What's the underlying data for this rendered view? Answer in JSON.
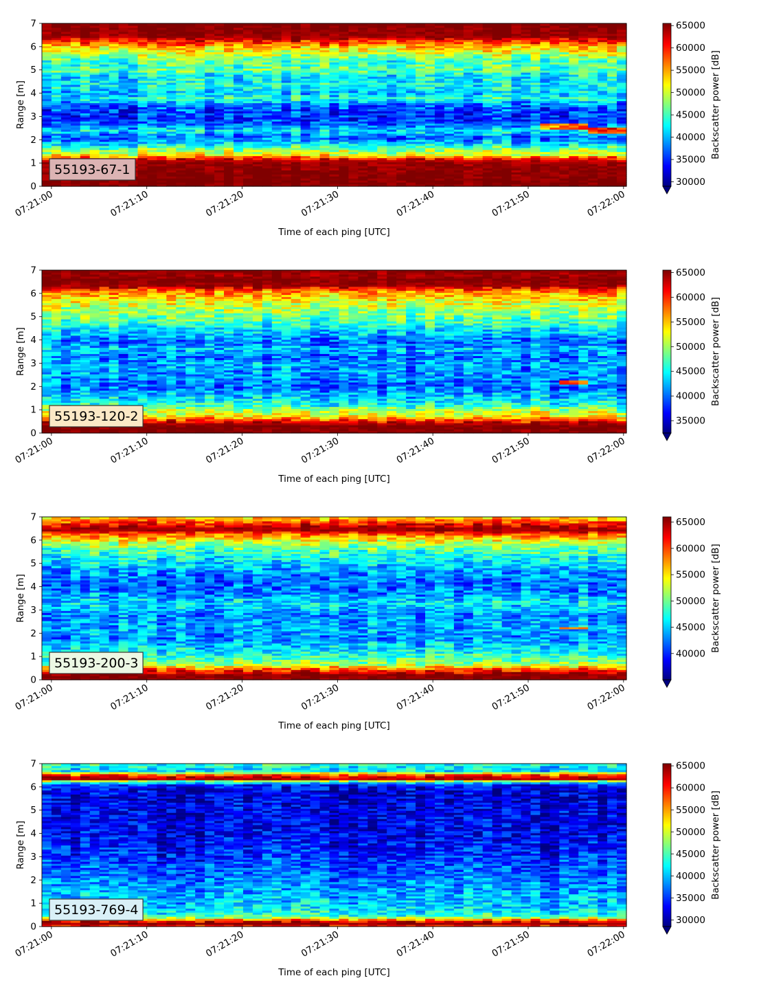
{
  "chart_data": [
    {
      "type": "heatmap",
      "label": "55193-67-1",
      "label_bg": "#dcb3b3",
      "xlabel": "Time of each ping [UTC]",
      "ylabel": "Range [m]",
      "xticks": [
        "07:21:00",
        "07:21:10",
        "07:21:20",
        "07:21:30",
        "07:21:40",
        "07:21:50",
        "07:22:00"
      ],
      "yticks": [
        "0",
        "1",
        "2",
        "3",
        "4",
        "5",
        "6",
        "7"
      ],
      "ylim": [
        0,
        7
      ],
      "xlim_seconds": [
        -1,
        60.3
      ],
      "colorbar": {
        "label": "Backscatter power [dB]",
        "range": [
          29000,
          65500
        ],
        "ticks": [
          "65000",
          "60000",
          "55000",
          "50000",
          "45000",
          "40000",
          "35000",
          "30000"
        ],
        "extend": "min"
      },
      "profile": [
        [
          0.0,
          65000
        ],
        [
          0.25,
          65500
        ],
        [
          1.05,
          64500
        ],
        [
          1.2,
          60000
        ],
        [
          1.35,
          52000
        ],
        [
          1.6,
          47000
        ],
        [
          1.85,
          41000
        ],
        [
          2.1,
          37000
        ],
        [
          2.4,
          42000
        ],
        [
          2.6,
          38000
        ],
        [
          2.9,
          35000
        ],
        [
          3.2,
          36000
        ],
        [
          3.5,
          37000
        ],
        [
          3.8,
          44000
        ],
        [
          4.0,
          40000
        ],
        [
          4.3,
          43000
        ],
        [
          4.7,
          42000
        ],
        [
          5.0,
          46000
        ],
        [
          5.4,
          45000
        ],
        [
          5.7,
          50000
        ],
        [
          6.0,
          54000
        ],
        [
          6.3,
          61000
        ],
        [
          6.45,
          64500
        ],
        [
          7.0,
          65500
        ]
      ],
      "features": [
        {
          "t0": 51,
          "t1": 56,
          "r0": 2.45,
          "r1": 2.7,
          "v": 57000
        },
        {
          "t0": 56,
          "t1": 61,
          "r0": 2.25,
          "r1": 2.5,
          "v": 59000
        }
      ]
    },
    {
      "type": "heatmap",
      "label": "55193-120-2",
      "label_bg": "#fbe9c6",
      "xlabel": "Time of each ping [UTC]",
      "ylabel": "Range [m]",
      "xticks": [
        "07:21:00",
        "07:21:10",
        "07:21:20",
        "07:21:30",
        "07:21:40",
        "07:21:50",
        "07:22:00"
      ],
      "yticks": [
        "0",
        "1",
        "2",
        "3",
        "4",
        "5",
        "6",
        "7"
      ],
      "ylim": [
        0,
        7
      ],
      "xlim_seconds": [
        -1,
        60.3
      ],
      "colorbar": {
        "label": "Backscatter power [dB]",
        "range": [
          32500,
          65500
        ],
        "ticks": [
          "65000",
          "60000",
          "55000",
          "50000",
          "45000",
          "40000",
          "35000"
        ],
        "extend": "min"
      },
      "profile": [
        [
          0.0,
          65000
        ],
        [
          0.3,
          65500
        ],
        [
          0.5,
          62000
        ],
        [
          0.7,
          54000
        ],
        [
          0.95,
          51000
        ],
        [
          1.2,
          46000
        ],
        [
          1.6,
          43000
        ],
        [
          2.0,
          40000
        ],
        [
          2.5,
          41000
        ],
        [
          3.0,
          42000
        ],
        [
          3.3,
          40000
        ],
        [
          3.6,
          43000
        ],
        [
          3.9,
          40000
        ],
        [
          4.3,
          43000
        ],
        [
          4.8,
          47000
        ],
        [
          5.3,
          50000
        ],
        [
          5.7,
          53000
        ],
        [
          6.1,
          57000
        ],
        [
          6.35,
          64500
        ],
        [
          6.6,
          65500
        ],
        [
          6.8,
          64000
        ],
        [
          7.0,
          65500
        ]
      ],
      "features": [
        {
          "t0": 53,
          "t1": 56,
          "r0": 2.1,
          "r1": 2.3,
          "v": 58000
        }
      ]
    },
    {
      "type": "heatmap",
      "label": "55193-200-3",
      "label_bg": "#ecf8e4",
      "xlabel": "Time of each ping [UTC]",
      "ylabel": "Range [m]",
      "xticks": [
        "07:21:00",
        "07:21:10",
        "07:21:20",
        "07:21:30",
        "07:21:40",
        "07:21:50",
        "07:22:00"
      ],
      "yticks": [
        "0",
        "1",
        "2",
        "3",
        "4",
        "5",
        "6",
        "7"
      ],
      "ylim": [
        0,
        7
      ],
      "xlim_seconds": [
        -1,
        60.3
      ],
      "colorbar": {
        "label": "Backscatter power [dB]",
        "range": [
          35000,
          66000
        ],
        "ticks": [
          "65000",
          "60000",
          "55000",
          "50000",
          "45000",
          "40000"
        ],
        "extend": "min"
      },
      "profile": [
        [
          0.0,
          65000
        ],
        [
          0.2,
          66000
        ],
        [
          0.45,
          60000
        ],
        [
          0.65,
          52000
        ],
        [
          0.9,
          49000
        ],
        [
          1.3,
          46000
        ],
        [
          1.8,
          43000
        ],
        [
          2.2,
          44000
        ],
        [
          2.8,
          43000
        ],
        [
          3.3,
          46000
        ],
        [
          3.7,
          43000
        ],
        [
          4.1,
          42000
        ],
        [
          4.6,
          43000
        ],
        [
          5.1,
          46000
        ],
        [
          5.6,
          49000
        ],
        [
          6.0,
          54000
        ],
        [
          6.3,
          60000
        ],
        [
          6.45,
          65500
        ],
        [
          6.7,
          62000
        ],
        [
          6.85,
          58000
        ],
        [
          7.0,
          55000
        ]
      ],
      "features": [
        {
          "t0": 53,
          "t1": 56,
          "r0": 2.15,
          "r1": 2.3,
          "v": 59000
        }
      ]
    },
    {
      "type": "heatmap",
      "label": "55193-769-4",
      "label_bg": "#d9f0f7",
      "xlabel": "Time of each ping [UTC]",
      "ylabel": "Range [m]",
      "xticks": [
        "07:21:00",
        "07:21:10",
        "07:21:20",
        "07:21:30",
        "07:21:40",
        "07:21:50",
        "07:22:00"
      ],
      "yticks": [
        "0",
        "1",
        "2",
        "3",
        "4",
        "5",
        "6",
        "7"
      ],
      "ylim": [
        0,
        7
      ],
      "xlim_seconds": [
        -1,
        60.3
      ],
      "colorbar": {
        "label": "Backscatter power [dB]",
        "range": [
          28500,
          65500
        ],
        "ticks": [
          "65000",
          "60000",
          "55000",
          "50000",
          "45000",
          "40000",
          "35000",
          "30000"
        ],
        "extend": "min"
      },
      "profile": [
        [
          0.0,
          58000
        ],
        [
          0.15,
          65500
        ],
        [
          0.3,
          56000
        ],
        [
          0.45,
          44000
        ],
        [
          0.8,
          41000
        ],
        [
          1.2,
          40000
        ],
        [
          1.8,
          38000
        ],
        [
          2.5,
          36000
        ],
        [
          3.2,
          34000
        ],
        [
          4.0,
          32500
        ],
        [
          5.0,
          32000
        ],
        [
          5.8,
          31500
        ],
        [
          6.1,
          34000
        ],
        [
          6.25,
          47000
        ],
        [
          6.35,
          64500
        ],
        [
          6.5,
          60000
        ],
        [
          6.7,
          41000
        ],
        [
          6.9,
          42000
        ],
        [
          7.0,
          44000
        ]
      ],
      "features": []
    }
  ]
}
